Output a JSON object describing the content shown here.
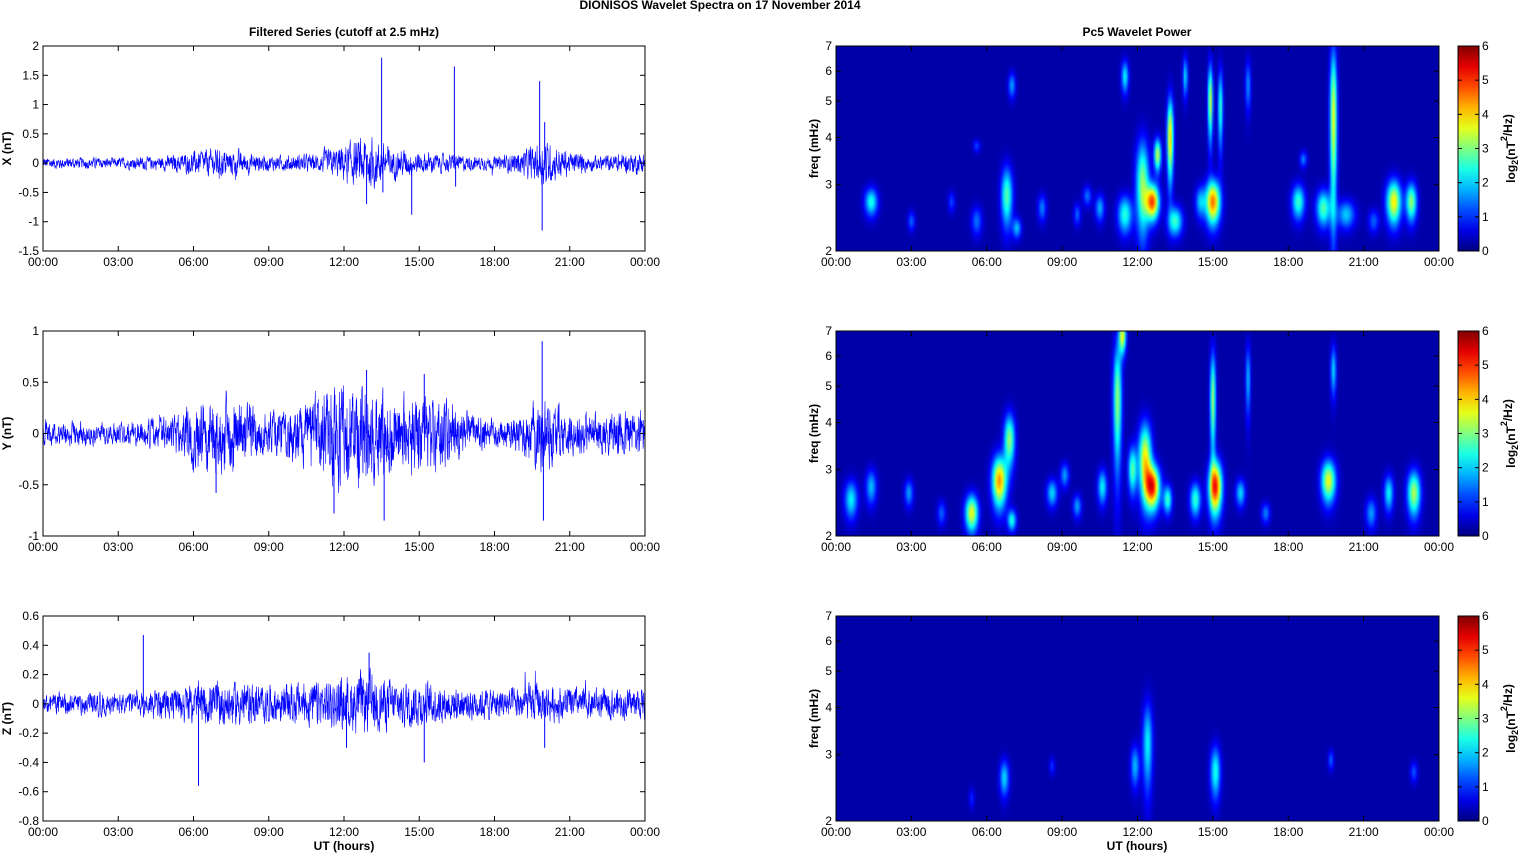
{
  "figure": {
    "suptitle": "DIONISOS Wavelet Spectra on 17 November  2014",
    "left_title": "Filtered Series (cutoff at 2.5 mHz)",
    "right_title": "Pc5 Wavelet Power",
    "xlabel": "UT (hours)"
  },
  "colors": {
    "series_line": "#0000ff",
    "colormap": "jet",
    "background": "#00008f"
  },
  "chart_data": [
    {
      "type": "line",
      "ylabel": "X (nT)",
      "xlim": [
        0,
        24
      ],
      "ylim": [
        -1.5,
        2
      ],
      "xticks": [
        "00:00",
        "03:00",
        "06:00",
        "09:00",
        "12:00",
        "15:00",
        "18:00",
        "21:00",
        "00:00"
      ],
      "yticks": [
        "-1.5",
        "-1",
        "-0.5",
        "0",
        "0.5",
        "1",
        "1.5",
        "2"
      ],
      "base_amplitude": 0.08,
      "envelope_hours": [
        0,
        3,
        5,
        6,
        7,
        9,
        11,
        12,
        13,
        14,
        15,
        16,
        17,
        18,
        19,
        20,
        21,
        22,
        24
      ],
      "envelope_amp": [
        0.08,
        0.07,
        0.1,
        0.15,
        0.2,
        0.1,
        0.12,
        0.25,
        0.35,
        0.2,
        0.15,
        0.12,
        0.1,
        0.08,
        0.15,
        0.3,
        0.15,
        0.1,
        0.15
      ],
      "spikes": [
        {
          "t": 13.5,
          "v": 1.8
        },
        {
          "t": 13.55,
          "v": -0.5
        },
        {
          "t": 16.4,
          "v": 1.65
        },
        {
          "t": 16.45,
          "v": -0.4
        },
        {
          "t": 19.8,
          "v": 1.4
        },
        {
          "t": 19.9,
          "v": -1.15
        },
        {
          "t": 14.7,
          "v": -0.88
        },
        {
          "t": 12.9,
          "v": -0.7
        },
        {
          "t": 20.0,
          "v": 0.7
        }
      ]
    },
    {
      "type": "line",
      "ylabel": "Y (nT)",
      "xlim": [
        0,
        24
      ],
      "ylim": [
        -1,
        1
      ],
      "xticks": [
        "00:00",
        "03:00",
        "06:00",
        "09:00",
        "12:00",
        "15:00",
        "18:00",
        "21:00",
        "00:00"
      ],
      "yticks": [
        "-1",
        "-0.5",
        "0",
        "0.5",
        "1"
      ],
      "base_amplitude": 0.1,
      "envelope_hours": [
        0,
        3,
        5,
        6,
        7,
        9,
        11,
        12,
        13,
        14,
        15,
        16,
        17,
        18,
        19,
        20,
        21,
        22,
        24
      ],
      "envelope_amp": [
        0.1,
        0.08,
        0.12,
        0.25,
        0.3,
        0.15,
        0.3,
        0.4,
        0.4,
        0.3,
        0.3,
        0.25,
        0.15,
        0.1,
        0.15,
        0.3,
        0.15,
        0.15,
        0.2
      ],
      "spikes": [
        {
          "t": 19.9,
          "v": 0.9
        },
        {
          "t": 19.95,
          "v": -0.85
        },
        {
          "t": 13.6,
          "v": -0.85
        },
        {
          "t": 11.6,
          "v": -0.78
        },
        {
          "t": 12.9,
          "v": 0.62
        },
        {
          "t": 15.2,
          "v": 0.58
        },
        {
          "t": 6.9,
          "v": -0.58
        },
        {
          "t": 24.0,
          "v": -0.65
        }
      ]
    },
    {
      "type": "line",
      "ylabel": "Z (nT)",
      "xlim": [
        0,
        24
      ],
      "ylim": [
        -0.8,
        0.6
      ],
      "xticks": [
        "00:00",
        "03:00",
        "06:00",
        "09:00",
        "12:00",
        "15:00",
        "18:00",
        "21:00",
        "00:00"
      ],
      "yticks": [
        "-0.8",
        "-0.6",
        "-0.4",
        "-0.2",
        "0",
        "0.2",
        "0.4",
        "0.6"
      ],
      "base_amplitude": 0.06,
      "envelope_hours": [
        0,
        3,
        5,
        6,
        7,
        9,
        11,
        12,
        13,
        14,
        15,
        16,
        17,
        18,
        19,
        20,
        21,
        22,
        24
      ],
      "envelope_amp": [
        0.06,
        0.06,
        0.08,
        0.1,
        0.12,
        0.1,
        0.12,
        0.14,
        0.16,
        0.12,
        0.12,
        0.1,
        0.09,
        0.08,
        0.09,
        0.1,
        0.08,
        0.08,
        0.08
      ],
      "spikes": [
        {
          "t": 4.0,
          "v": 0.47
        },
        {
          "t": 6.2,
          "v": -0.56
        },
        {
          "t": 15.2,
          "v": -0.4
        },
        {
          "t": 12.1,
          "v": -0.3
        },
        {
          "t": 13.0,
          "v": 0.35
        },
        {
          "t": 20.0,
          "v": -0.3
        }
      ]
    },
    {
      "type": "heatmap",
      "ylabel": "freq (mHz)",
      "colorbar_label": "log2(nT2/Hz)",
      "xlim": [
        0,
        24
      ],
      "ylim": [
        2,
        7
      ],
      "yscale": "log",
      "clim": [
        0,
        6
      ],
      "xticks": [
        "00:00",
        "03:00",
        "06:00",
        "09:00",
        "12:00",
        "15:00",
        "18:00",
        "21:00",
        "00:00"
      ],
      "yticks": [
        "2",
        "3",
        "4",
        "5",
        "6",
        "7"
      ],
      "cbar_ticks": [
        "0",
        "1",
        "2",
        "3",
        "4",
        "5",
        "6"
      ],
      "blobs": [
        {
          "t": 1.4,
          "f": 2.7,
          "wt": 0.18,
          "wf": 0.16,
          "p": 2.4
        },
        {
          "t": 3.0,
          "f": 2.4,
          "wt": 0.1,
          "wf": 0.1,
          "p": 1.2
        },
        {
          "t": 4.6,
          "f": 2.7,
          "wt": 0.1,
          "wf": 0.12,
          "p": 1.0
        },
        {
          "t": 5.6,
          "f": 2.4,
          "wt": 0.15,
          "wf": 0.15,
          "p": 1.3
        },
        {
          "t": 5.6,
          "f": 3.8,
          "wt": 0.1,
          "wf": 0.1,
          "p": 1.0
        },
        {
          "t": 6.8,
          "f": 2.8,
          "wt": 0.16,
          "wf": 0.35,
          "p": 2.8
        },
        {
          "t": 7.0,
          "f": 5.5,
          "wt": 0.1,
          "wf": 0.3,
          "p": 1.6
        },
        {
          "t": 7.2,
          "f": 2.3,
          "wt": 0.12,
          "wf": 0.1,
          "p": 1.8
        },
        {
          "t": 8.2,
          "f": 2.6,
          "wt": 0.12,
          "wf": 0.15,
          "p": 1.4
        },
        {
          "t": 9.6,
          "f": 2.5,
          "wt": 0.1,
          "wf": 0.12,
          "p": 1.2
        },
        {
          "t": 10.0,
          "f": 2.8,
          "wt": 0.12,
          "wf": 0.12,
          "p": 1.3
        },
        {
          "t": 10.5,
          "f": 2.6,
          "wt": 0.13,
          "wf": 0.15,
          "p": 1.7
        },
        {
          "t": 11.5,
          "f": 2.5,
          "wt": 0.2,
          "wf": 0.2,
          "p": 2.5
        },
        {
          "t": 11.5,
          "f": 5.8,
          "wt": 0.1,
          "wf": 0.4,
          "p": 2.2
        },
        {
          "t": 12.2,
          "f": 3.0,
          "wt": 0.18,
          "wf": 0.6,
          "p": 3.2
        },
        {
          "t": 12.6,
          "f": 2.7,
          "wt": 0.18,
          "wf": 0.2,
          "p": 5.0
        },
        {
          "t": 12.8,
          "f": 3.6,
          "wt": 0.1,
          "wf": 0.25,
          "p": 3.5
        },
        {
          "t": 13.3,
          "f": 4.0,
          "wt": 0.09,
          "wf": 0.7,
          "p": 4.2
        },
        {
          "t": 13.5,
          "f": 2.4,
          "wt": 0.2,
          "wf": 0.15,
          "p": 2.6
        },
        {
          "t": 13.9,
          "f": 5.8,
          "wt": 0.07,
          "wf": 0.5,
          "p": 2.0
        },
        {
          "t": 14.5,
          "f": 2.7,
          "wt": 0.14,
          "wf": 0.18,
          "p": 1.8
        },
        {
          "t": 15.0,
          "f": 2.7,
          "wt": 0.2,
          "wf": 0.25,
          "p": 4.8
        },
        {
          "t": 14.9,
          "f": 5.0,
          "wt": 0.07,
          "wf": 0.8,
          "p": 3.6
        },
        {
          "t": 15.3,
          "f": 4.8,
          "wt": 0.07,
          "wf": 0.8,
          "p": 2.6
        },
        {
          "t": 16.4,
          "f": 5.5,
          "wt": 0.08,
          "wf": 0.6,
          "p": 1.5
        },
        {
          "t": 18.4,
          "f": 2.7,
          "wt": 0.18,
          "wf": 0.2,
          "p": 2.6
        },
        {
          "t": 18.6,
          "f": 3.5,
          "wt": 0.1,
          "wf": 0.12,
          "p": 1.4
        },
        {
          "t": 19.4,
          "f": 2.6,
          "wt": 0.2,
          "wf": 0.2,
          "p": 2.8
        },
        {
          "t": 19.8,
          "f": 4.5,
          "wt": 0.1,
          "wf": 1.5,
          "p": 3.8
        },
        {
          "t": 20.3,
          "f": 2.5,
          "wt": 0.25,
          "wf": 0.15,
          "p": 1.9
        },
        {
          "t": 21.4,
          "f": 2.4,
          "wt": 0.15,
          "wf": 0.12,
          "p": 1.2
        },
        {
          "t": 22.2,
          "f": 2.7,
          "wt": 0.2,
          "wf": 0.25,
          "p": 4.0
        },
        {
          "t": 22.9,
          "f": 2.7,
          "wt": 0.15,
          "wf": 0.22,
          "p": 3.2
        }
      ]
    },
    {
      "type": "heatmap",
      "ylabel": "freq (mHz)",
      "colorbar_label": "log2(nT2/Hz)",
      "xlim": [
        0,
        24
      ],
      "ylim": [
        2,
        7
      ],
      "yscale": "log",
      "clim": [
        0,
        6
      ],
      "xticks": [
        "00:00",
        "03:00",
        "06:00",
        "09:00",
        "12:00",
        "15:00",
        "18:00",
        "21:00",
        "00:00"
      ],
      "yticks": [
        "2",
        "3",
        "4",
        "5",
        "6",
        "7"
      ],
      "cbar_ticks": [
        "0",
        "1",
        "2",
        "3",
        "4",
        "5",
        "6"
      ],
      "blobs": [
        {
          "t": 0.6,
          "f": 2.5,
          "wt": 0.18,
          "wf": 0.2,
          "p": 2.2
        },
        {
          "t": 1.4,
          "f": 2.7,
          "wt": 0.15,
          "wf": 0.2,
          "p": 1.8
        },
        {
          "t": 2.9,
          "f": 2.6,
          "wt": 0.12,
          "wf": 0.15,
          "p": 1.6
        },
        {
          "t": 4.2,
          "f": 2.3,
          "wt": 0.12,
          "wf": 0.12,
          "p": 1.2
        },
        {
          "t": 5.4,
          "f": 2.3,
          "wt": 0.18,
          "wf": 0.18,
          "p": 3.8
        },
        {
          "t": 6.5,
          "f": 2.8,
          "wt": 0.2,
          "wf": 0.3,
          "p": 4.6
        },
        {
          "t": 6.9,
          "f": 3.6,
          "wt": 0.15,
          "wf": 0.4,
          "p": 3.2
        },
        {
          "t": 7.0,
          "f": 2.2,
          "wt": 0.12,
          "wf": 0.1,
          "p": 2.4
        },
        {
          "t": 8.6,
          "f": 2.6,
          "wt": 0.15,
          "wf": 0.15,
          "p": 2.0
        },
        {
          "t": 9.1,
          "f": 2.9,
          "wt": 0.12,
          "wf": 0.15,
          "p": 1.6
        },
        {
          "t": 9.6,
          "f": 2.4,
          "wt": 0.12,
          "wf": 0.12,
          "p": 1.6
        },
        {
          "t": 10.6,
          "f": 2.7,
          "wt": 0.13,
          "wf": 0.2,
          "p": 2.2
        },
        {
          "t": 11.2,
          "f": 4.6,
          "wt": 0.12,
          "wf": 1.2,
          "p": 3.2
        },
        {
          "t": 11.4,
          "f": 6.8,
          "wt": 0.1,
          "wf": 0.5,
          "p": 3.8
        },
        {
          "t": 11.8,
          "f": 3.0,
          "wt": 0.12,
          "wf": 0.3,
          "p": 2.8
        },
        {
          "t": 12.3,
          "f": 3.2,
          "wt": 0.18,
          "wf": 0.5,
          "p": 4.0
        },
        {
          "t": 12.6,
          "f": 2.7,
          "wt": 0.2,
          "wf": 0.25,
          "p": 5.2
        },
        {
          "t": 13.2,
          "f": 2.5,
          "wt": 0.12,
          "wf": 0.15,
          "p": 2.6
        },
        {
          "t": 14.3,
          "f": 2.5,
          "wt": 0.15,
          "wf": 0.18,
          "p": 2.6
        },
        {
          "t": 15.1,
          "f": 2.7,
          "wt": 0.18,
          "wf": 0.3,
          "p": 5.4
        },
        {
          "t": 15.0,
          "f": 4.6,
          "wt": 0.08,
          "wf": 1.0,
          "p": 3.2
        },
        {
          "t": 16.1,
          "f": 2.6,
          "wt": 0.13,
          "wf": 0.15,
          "p": 2.0
        },
        {
          "t": 16.4,
          "f": 5.2,
          "wt": 0.07,
          "wf": 0.8,
          "p": 1.8
        },
        {
          "t": 17.1,
          "f": 2.3,
          "wt": 0.12,
          "wf": 0.1,
          "p": 1.4
        },
        {
          "t": 19.6,
          "f": 2.8,
          "wt": 0.2,
          "wf": 0.25,
          "p": 3.8
        },
        {
          "t": 19.8,
          "f": 5.5,
          "wt": 0.08,
          "wf": 0.6,
          "p": 2.0
        },
        {
          "t": 21.3,
          "f": 2.3,
          "wt": 0.15,
          "wf": 0.15,
          "p": 1.6
        },
        {
          "t": 22.0,
          "f": 2.6,
          "wt": 0.13,
          "wf": 0.2,
          "p": 2.2
        },
        {
          "t": 23.0,
          "f": 2.6,
          "wt": 0.18,
          "wf": 0.25,
          "p": 3.4
        }
      ]
    },
    {
      "type": "heatmap",
      "ylabel": "freq (mHz)",
      "colorbar_label": "log2(nT2/Hz)",
      "xlim": [
        0,
        24
      ],
      "ylim": [
        2,
        7
      ],
      "yscale": "log",
      "clim": [
        0,
        6
      ],
      "xticks": [
        "00:00",
        "03:00",
        "06:00",
        "09:00",
        "12:00",
        "15:00",
        "18:00",
        "21:00",
        "00:00"
      ],
      "yticks": [
        "2",
        "3",
        "4",
        "5",
        "6",
        "7"
      ],
      "cbar_ticks": [
        "0",
        "1",
        "2",
        "3",
        "4",
        "5",
        "6"
      ],
      "blobs": [
        {
          "t": 5.4,
          "f": 2.3,
          "wt": 0.08,
          "wf": 0.1,
          "p": 0.8
        },
        {
          "t": 6.7,
          "f": 2.6,
          "wt": 0.13,
          "wf": 0.2,
          "p": 2.0
        },
        {
          "t": 8.6,
          "f": 2.8,
          "wt": 0.08,
          "wf": 0.1,
          "p": 0.9
        },
        {
          "t": 11.9,
          "f": 2.8,
          "wt": 0.12,
          "wf": 0.25,
          "p": 1.8
        },
        {
          "t": 12.4,
          "f": 3.2,
          "wt": 0.14,
          "wf": 0.6,
          "p": 2.2
        },
        {
          "t": 15.1,
          "f": 2.7,
          "wt": 0.14,
          "wf": 0.3,
          "p": 2.4
        },
        {
          "t": 19.7,
          "f": 2.9,
          "wt": 0.08,
          "wf": 0.12,
          "p": 1.2
        },
        {
          "t": 23.0,
          "f": 2.7,
          "wt": 0.1,
          "wf": 0.12,
          "p": 1.1
        }
      ]
    }
  ]
}
